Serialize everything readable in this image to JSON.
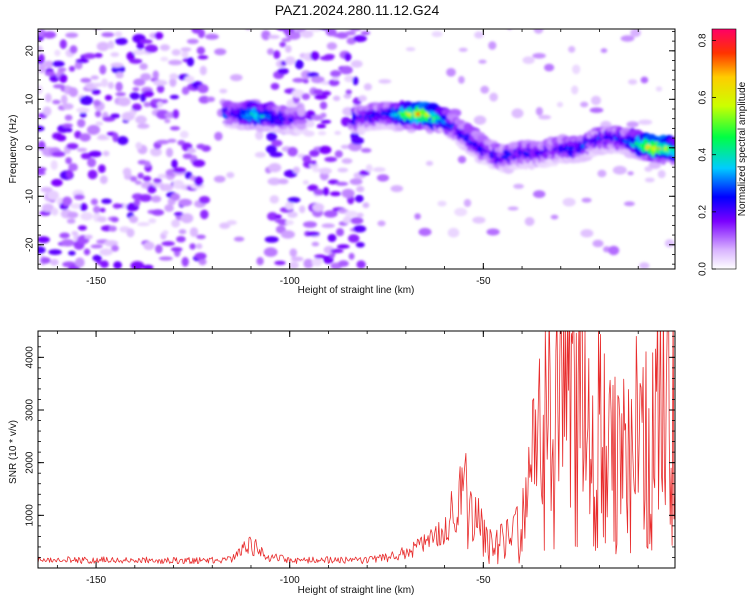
{
  "title": "PAZ1.2024.280.11.12.G24",
  "chart_data": [
    {
      "type": "heatmap",
      "xlabel": "Height of straight line (km)",
      "ylabel": "Frequency (Hz)",
      "xlim": [
        -165,
        -0.5
      ],
      "ylim": [
        -25,
        24.5
      ],
      "x_ticks": [
        -150,
        -100,
        -50
      ],
      "x_tick_labels": [
        "-150",
        "-100",
        "-50"
      ],
      "y_ticks": [
        -20,
        -10,
        0,
        10,
        20
      ],
      "y_tick_labels": [
        "-20",
        "-10",
        "0",
        "10",
        "20"
      ],
      "colorbar": {
        "label": "Normalized spectral amplitude",
        "range": [
          0,
          0.84
        ],
        "ticks": [
          0,
          0.2,
          0.4,
          0.6,
          0.8
        ],
        "tick_labels": [
          "0.0",
          "0.2",
          "0.4",
          "0.6",
          "0.8"
        ]
      },
      "ridge": {
        "x": [
          -115,
          -110,
          -105,
          -100,
          -95,
          -85,
          -80,
          -75,
          -70,
          -65,
          -60,
          -55,
          -50,
          -45,
          -40,
          -35,
          -30,
          -25,
          -20,
          -15,
          -10,
          -5,
          -1
        ],
        "y": [
          7,
          7,
          6.5,
          6,
          6,
          6,
          6.5,
          7,
          7,
          7,
          6,
          3,
          0,
          -2,
          -1,
          -1,
          0,
          0,
          2,
          2,
          1,
          0,
          0
        ]
      },
      "peaks": [
        {
          "x": -108,
          "y": 6.5,
          "value": 0.5
        },
        {
          "x": -66,
          "y": 7,
          "value": 0.82
        },
        {
          "x": -5,
          "y": 0,
          "value": 0.8
        }
      ]
    },
    {
      "type": "line",
      "xlabel": "Height of straight line (km)",
      "ylabel": "SNR (10 * v/v)",
      "xlim": [
        -165,
        -0.5
      ],
      "ylim": [
        0,
        4500
      ],
      "x_ticks": [
        -150,
        -100,
        -50
      ],
      "x_tick_labels": [
        "-150",
        "-100",
        "-50"
      ],
      "y_ticks": [
        1000,
        2000,
        3000,
        4000
      ],
      "y_tick_labels": [
        "1000",
        "2000",
        "3000",
        "4000"
      ],
      "series": [
        {
          "color": "#e82c2c",
          "x": [
            -165,
            -150,
            -130,
            -115,
            -110,
            -105,
            -100,
            -90,
            -80,
            -75,
            -70,
            -65,
            -60,
            -57,
            -55,
            -52,
            -50,
            -47,
            -45,
            -42,
            -40,
            -38,
            -35,
            -32,
            -30,
            -27,
            -25,
            -22,
            -20,
            -17,
            -15,
            -12,
            -10,
            -7,
            -5,
            -3,
            -1
          ],
          "y": [
            150,
            150,
            150,
            150,
            450,
            200,
            150,
            150,
            150,
            200,
            300,
            450,
            800,
            1200,
            1500,
            1000,
            600,
            450,
            450,
            550,
            800,
            1700,
            2400,
            2700,
            2900,
            3100,
            3300,
            2800,
            2500,
            2200,
            2000,
            2300,
            2500,
            2200,
            2800,
            3600,
            3500
          ]
        }
      ]
    }
  ]
}
